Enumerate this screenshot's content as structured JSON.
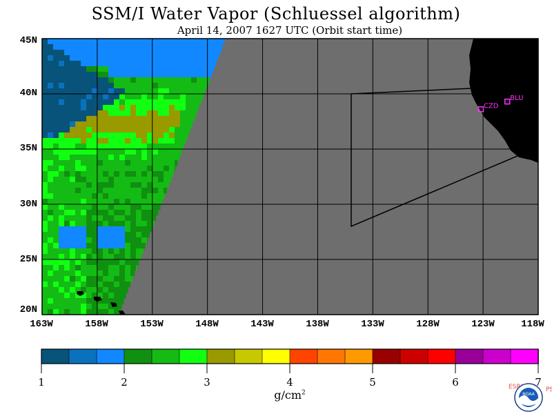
{
  "header": {
    "title": "SSM/I Water Vapor (Schluessel algorithm)",
    "subtitle": "April 14, 2007  1627 UTC  (Orbit start time)"
  },
  "map": {
    "lat_labels": [
      "45N",
      "40N",
      "35N",
      "30N",
      "25N",
      "20N"
    ],
    "lon_labels": [
      "163W",
      "158W",
      "153W",
      "148W",
      "143W",
      "138W",
      "133W",
      "128W",
      "123W",
      "118W"
    ],
    "stations": [
      {
        "id": "CZD",
        "lat": 38.6,
        "lon": -123.2
      },
      {
        "id": "BLU",
        "lat": 39.3,
        "lon": -120.8
      }
    ],
    "colors": {
      "no_data": "#6e6e6e",
      "land": "#000000",
      "grid": "#000000",
      "station": "#ff33ff"
    }
  },
  "colorbar": {
    "ticks": [
      "1",
      "2",
      "3",
      "4",
      "5",
      "6",
      "7"
    ],
    "units": "g/cm",
    "units_exp": "2",
    "colors": [
      "#08537a",
      "#0a72bd",
      "#1188ff",
      "#109010",
      "#14bb14",
      "#11ff11",
      "#999900",
      "#c8c800",
      "#ffff00",
      "#ff4400",
      "#ff7700",
      "#ff9900",
      "#990000",
      "#cc0000",
      "#ff0000",
      "#990099",
      "#cc00cc",
      "#ff00ff"
    ]
  },
  "logo": {
    "org_left": "ESRL",
    "org_center": "NOAA",
    "org_right": "PSD"
  }
}
